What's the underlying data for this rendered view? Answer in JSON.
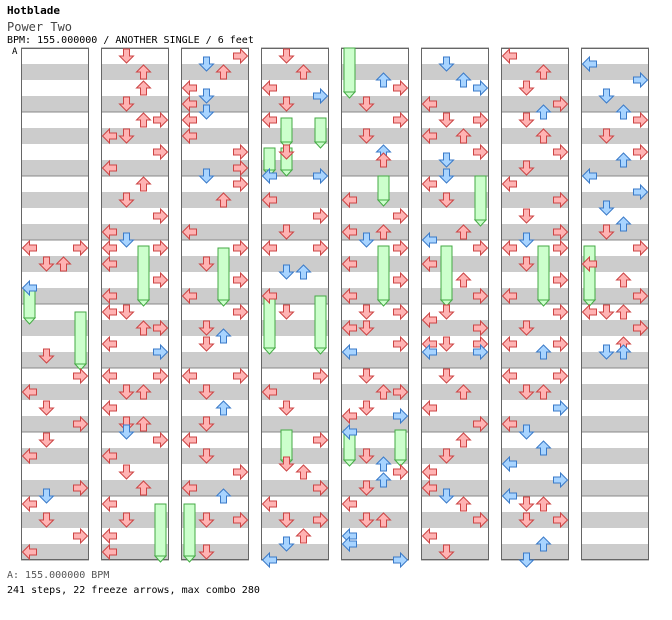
{
  "song": {
    "title": "Hotblade",
    "subtitle": "Power Two",
    "info_line": "BPM: 155.000000 / ANOTHER SINGLE / 6 feet",
    "bpm_marker": "A"
  },
  "footer": {
    "bpm_legend": "A: 155.000000 BPM",
    "stats": "241 steps, 22 freeze arrows, max combo 280"
  },
  "colors": {
    "tap_red": "#ffb3b3",
    "tap_red_stroke": "#cc4444",
    "tap_blue": "#a8d4ff",
    "tap_blue_stroke": "#3a7ac8",
    "freeze_fill": "#ccffcc",
    "freeze_stroke": "#44aa44",
    "stripe_gray": "#cccccc",
    "lane_bg": "#ffffff"
  },
  "arrow_icons": [
    "left-arrow-icon",
    "down-arrow-icon",
    "up-arrow-icon",
    "right-arrow-icon"
  ]
}
